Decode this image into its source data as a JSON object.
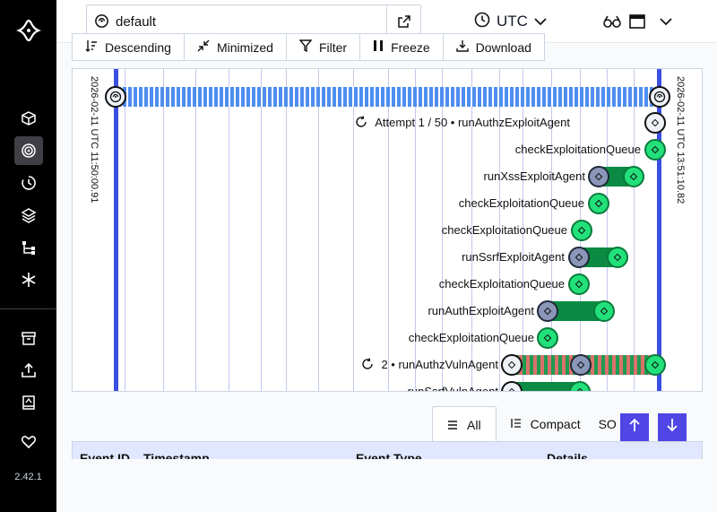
{
  "sidebar": {
    "items": [
      {
        "name": "workflows",
        "icon": "cube-icon"
      },
      {
        "name": "history",
        "icon": "spiral-icon"
      },
      {
        "name": "schedules",
        "icon": "clock-icon"
      },
      {
        "name": "batch",
        "icon": "layers-icon"
      },
      {
        "name": "deployments",
        "icon": "tree-icon"
      },
      {
        "name": "nexus",
        "icon": "asterisk-icon"
      },
      {
        "name": "archive",
        "icon": "archive-icon"
      },
      {
        "name": "import",
        "icon": "upload-icon"
      },
      {
        "name": "docs",
        "icon": "book-icon"
      },
      {
        "name": "feedback",
        "icon": "heart-icon"
      }
    ],
    "version": "2.42.1"
  },
  "header": {
    "namespace": "default",
    "timezone": "UTC"
  },
  "toolbar": {
    "descending": "Descending",
    "minimized": "Minimized",
    "filter": "Filter",
    "freeze": "Freeze",
    "download": "Download"
  },
  "timeline": {
    "start_label": "2026-02-11 UTC 11:50:00.91",
    "end_label": "2026-02-11 UTC 13:51:10.82",
    "rows": [
      {
        "label": "Attempt 1 / 50 • runAuthzExploitAgent"
      },
      {
        "label": "checkExploitationQueue"
      },
      {
        "label": "runXssExploitAgent"
      },
      {
        "label": "checkExploitationQueue"
      },
      {
        "label": "checkExploitationQueue"
      },
      {
        "label": "runSsrfExploitAgent"
      },
      {
        "label": "checkExploitationQueue"
      },
      {
        "label": "runAuthExploitAgent"
      },
      {
        "label": "checkExploitationQueue"
      },
      {
        "label": "2 • runAuthzVulnAgent"
      },
      {
        "label": "runSsrfVulnAgent"
      }
    ]
  },
  "view": {
    "all": "All",
    "compact": "Compact",
    "json_partial": "SO"
  },
  "table": {
    "columns": [
      "Event ID",
      "Timestamp",
      "Event Type",
      "Details"
    ]
  },
  "colors": {
    "accent": "#4f46e5",
    "completed": "#22e07a",
    "edge": "#3b4fe0"
  }
}
